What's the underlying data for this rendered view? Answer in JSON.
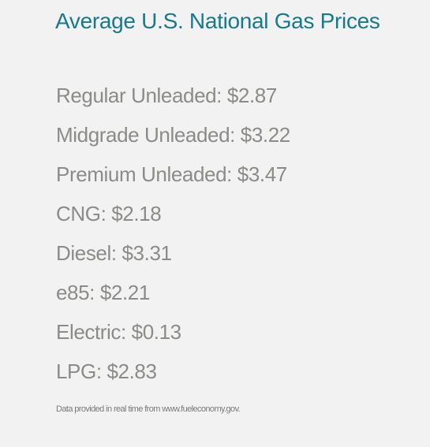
{
  "header": {
    "title": "Average U.S. National Gas Prices"
  },
  "prices": [
    "Regular Unleaded: $2.87",
    "Midgrade Unleaded: $3.22",
    "Premium Unleaded: $3.47",
    "CNG: $2.18",
    "Diesel: $3.31",
    "e85: $2.21",
    "Electric: $0.13",
    "LPG: $2.83"
  ],
  "footer": {
    "note": "Data provided in real time from www.fueleconomy.gov."
  }
}
